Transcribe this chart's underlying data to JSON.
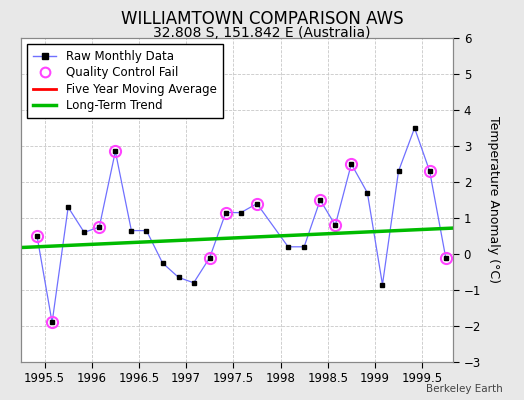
{
  "title": "WILLIAMTOWN COMPARISON AWS",
  "subtitle": "32.808 S, 151.842 E (Australia)",
  "ylabel": "Temperature Anomaly (°C)",
  "watermark": "Berkeley Earth",
  "xlim": [
    1995.25,
    1999.83
  ],
  "ylim": [
    -3,
    6
  ],
  "yticks": [
    -3,
    -2,
    -1,
    0,
    1,
    2,
    3,
    4,
    5,
    6
  ],
  "xticks": [
    1995.5,
    1996.0,
    1996.5,
    1997.0,
    1997.5,
    1998.0,
    1998.5,
    1999.0,
    1999.5
  ],
  "xticklabels": [
    "1995.5",
    "1996",
    "1996.5",
    "1997",
    "1997.5",
    "1998",
    "1998.5",
    "1999",
    "1999.5"
  ],
  "raw_x": [
    1995.42,
    1995.58,
    1995.75,
    1995.92,
    1996.08,
    1996.25,
    1996.42,
    1996.58,
    1996.75,
    1996.92,
    1997.08,
    1997.25,
    1997.42,
    1997.58,
    1997.75,
    1998.08,
    1998.25,
    1998.42,
    1998.58,
    1998.75,
    1998.92,
    1999.08,
    1999.25,
    1999.42,
    1999.58,
    1999.75
  ],
  "raw_y": [
    0.5,
    -1.9,
    1.3,
    0.6,
    0.75,
    2.85,
    0.65,
    0.65,
    -0.25,
    -0.65,
    -0.8,
    -0.1,
    1.15,
    1.15,
    1.4,
    0.2,
    0.2,
    1.5,
    0.8,
    2.5,
    1.7,
    -0.85,
    2.3,
    3.5,
    2.3,
    -0.1
  ],
  "qc_x": [
    1995.42,
    1995.58,
    1996.08,
    1996.25,
    1997.25,
    1997.42,
    1997.75,
    1998.42,
    1998.58,
    1998.75,
    1999.58,
    1999.75
  ],
  "qc_y": [
    0.5,
    -1.9,
    0.75,
    2.85,
    -0.1,
    1.15,
    1.4,
    1.5,
    0.8,
    2.5,
    2.3,
    -0.1
  ],
  "trend_x": [
    1995.25,
    1999.83
  ],
  "trend_y": [
    0.18,
    0.72
  ],
  "raw_line_color": "#7070ff",
  "raw_marker_color": "#000000",
  "qc_marker_color": "#ff44ff",
  "trend_color": "#00bb00",
  "moving_avg_color": "#ff0000",
  "bg_color": "#e8e8e8",
  "plot_bg_color": "#ffffff",
  "grid_color": "#c8c8c8",
  "title_fontsize": 12,
  "subtitle_fontsize": 10,
  "legend_fontsize": 8.5,
  "ylabel_fontsize": 9
}
